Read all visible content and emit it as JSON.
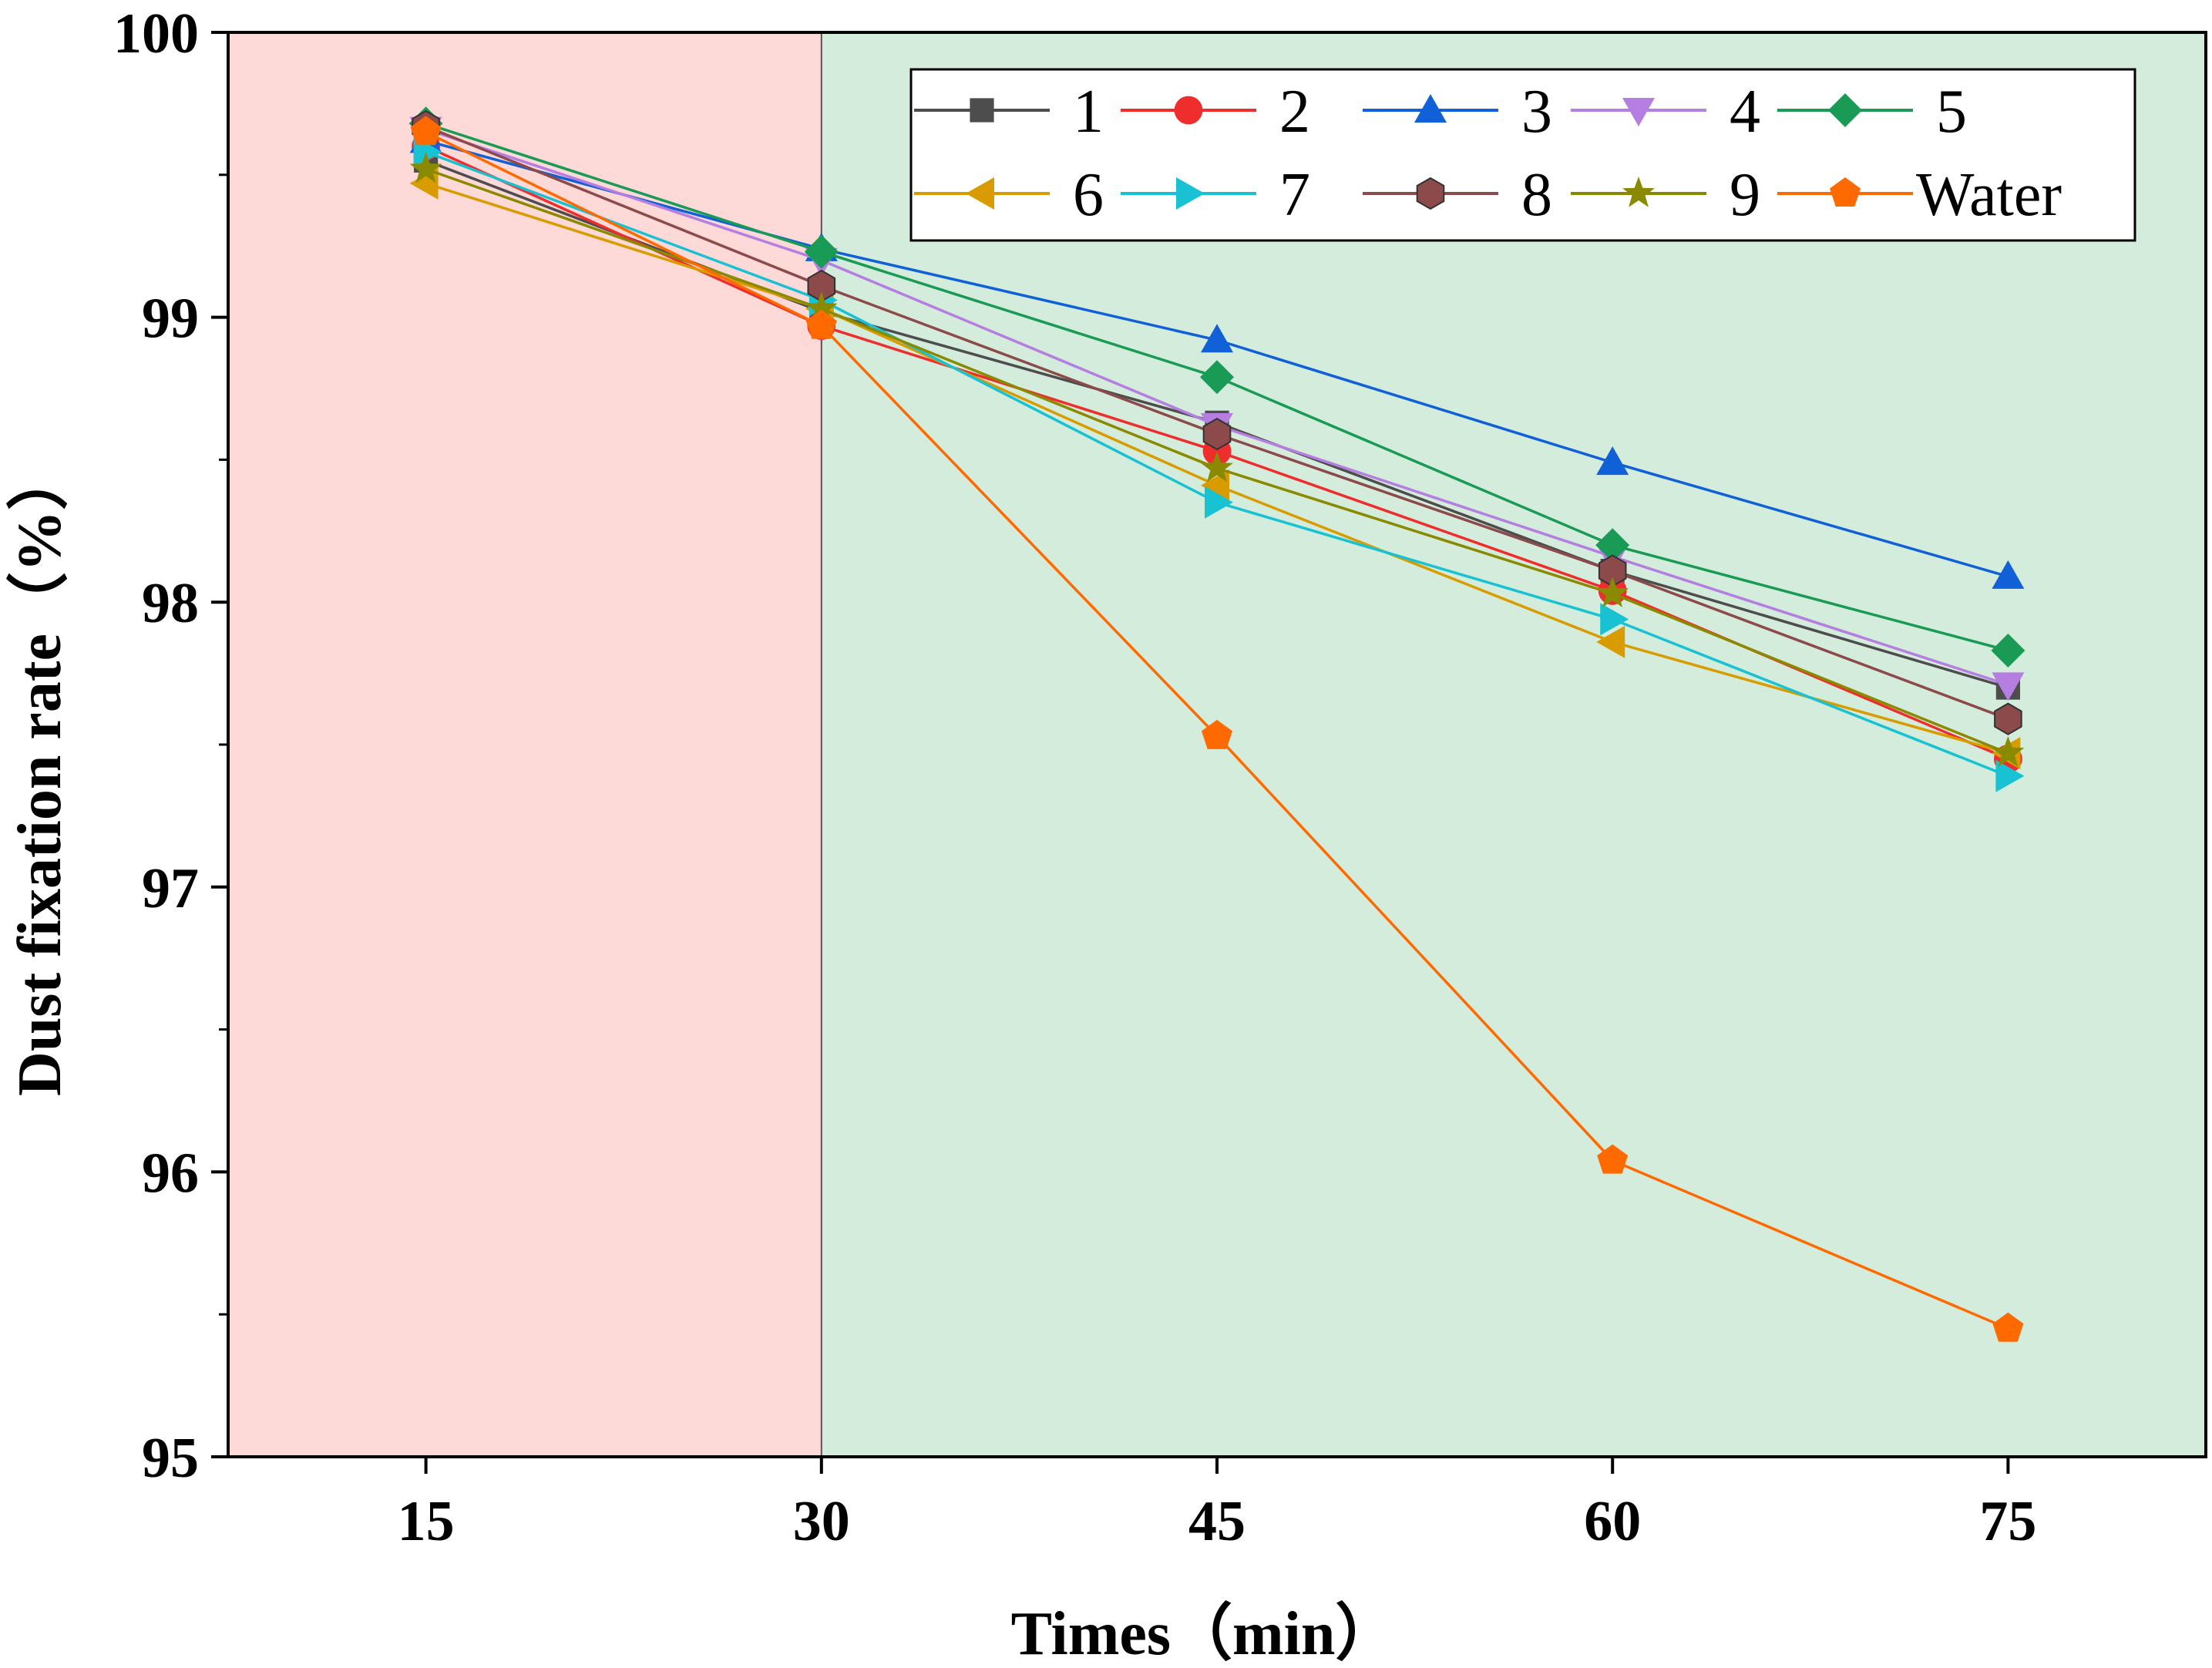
{
  "chart_data": {
    "type": "line",
    "xlabel": "Times（min）",
    "ylabel": "Dust fixation rate（%）",
    "x": [
      15,
      30,
      45,
      60,
      75
    ],
    "xlim": [
      7.5,
      82.5
    ],
    "ylim": [
      95,
      100
    ],
    "xticks": [
      "15",
      "30",
      "45",
      "60",
      "75"
    ],
    "yticks": [
      "95",
      "96",
      "97",
      "98",
      "99",
      "100"
    ],
    "shaded_regions": [
      {
        "from": 7.5,
        "to": 30,
        "color": "#fdd9d8"
      },
      {
        "from": 30,
        "to": 82.5,
        "color": "#d4ecdc"
      }
    ],
    "legend_position": "top-right",
    "series": [
      {
        "name": "1",
        "color": "#4d4d4d",
        "marker": "square",
        "values": [
          99.55,
          99.02,
          98.63,
          98.11,
          97.7
        ]
      },
      {
        "name": "2",
        "color": "#f02d2d",
        "marker": "circle",
        "values": [
          99.6,
          98.97,
          98.53,
          98.04,
          97.45
        ]
      },
      {
        "name": "3",
        "color": "#1060d8",
        "marker": "triangle-up",
        "values": [
          99.62,
          99.24,
          98.92,
          98.49,
          98.09
        ]
      },
      {
        "name": "4",
        "color": "#b57ee0",
        "marker": "triangle-down",
        "values": [
          99.66,
          99.2,
          98.62,
          98.16,
          97.71
        ]
      },
      {
        "name": "5",
        "color": "#1a9b55",
        "marker": "diamond",
        "values": [
          99.68,
          99.23,
          98.79,
          98.2,
          97.83
        ]
      },
      {
        "name": "6",
        "color": "#d89c00",
        "marker": "triangle-left",
        "values": [
          99.47,
          99.03,
          98.41,
          97.86,
          97.47
        ]
      },
      {
        "name": "7",
        "color": "#19c2d2",
        "marker": "triangle-right",
        "values": [
          99.58,
          99.06,
          98.35,
          97.94,
          97.39
        ]
      },
      {
        "name": "8",
        "color": "#8c4a4a",
        "marker": "hexagon",
        "values": [
          99.67,
          99.11,
          98.59,
          98.11,
          97.59
        ]
      },
      {
        "name": "9",
        "color": "#8a8a00",
        "marker": "star",
        "values": [
          99.52,
          99.03,
          98.47,
          98.03,
          97.47
        ]
      },
      {
        "name": "Water",
        "color": "#ff6a00",
        "marker": "pentagon",
        "values": [
          99.65,
          98.97,
          97.53,
          96.04,
          95.45
        ]
      }
    ]
  }
}
